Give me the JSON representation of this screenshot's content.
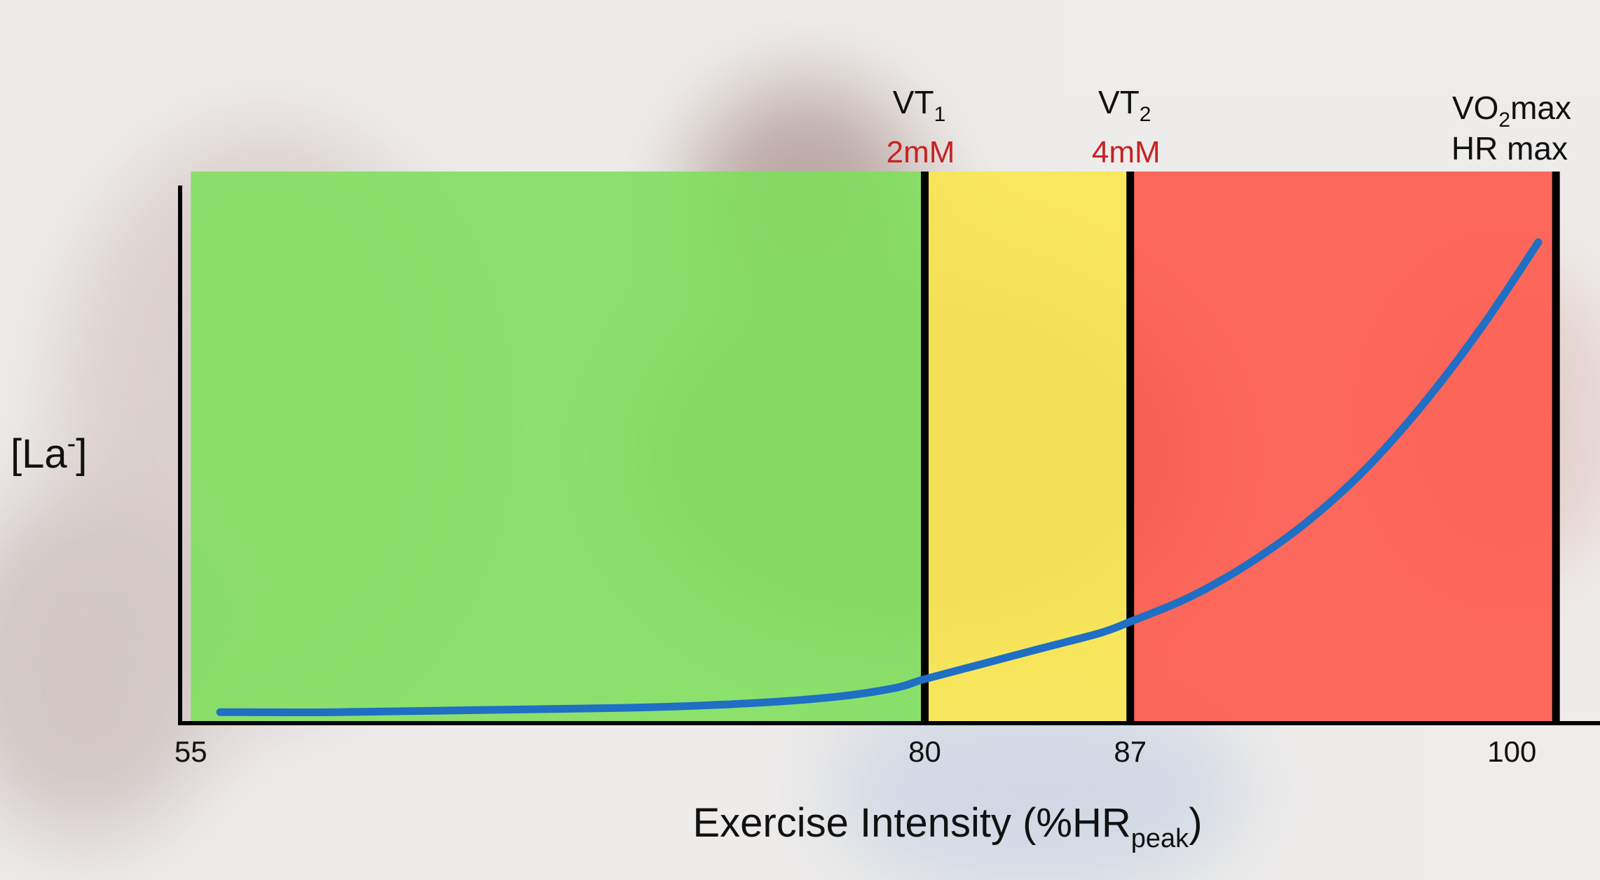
{
  "chart_data": {
    "type": "area",
    "xlabel": {
      "main": "Exercise Intensity (%HR",
      "sub": "peak",
      "close": ")"
    },
    "ylabel": {
      "main": "[La",
      "sup": "-",
      "close": "]"
    },
    "xlim": [
      48.5,
      103
    ],
    "x_ticks": [
      "55",
      "80",
      "87",
      "100"
    ],
    "zones": [
      {
        "from": 55,
        "to": 80,
        "color": "#7ddf5a"
      },
      {
        "from": 80,
        "to": 87,
        "color": "#fbe64a"
      },
      {
        "from": 87,
        "to": 101.5,
        "color": "#ff5548"
      }
    ],
    "thresholds": [
      {
        "x": 80,
        "name": "VT",
        "sub": "1",
        "lactate": "2mM"
      },
      {
        "x": 87,
        "name": "VT",
        "sub": "2",
        "lactate": "4mM"
      },
      {
        "x": 101.5,
        "line1_pre": "VO",
        "line1_sub": "2",
        "line1_post": "max",
        "line2": "HR max"
      }
    ],
    "series": [
      {
        "color": "#1f6fc5",
        "x": [
          56,
          60,
          65,
          70,
          74,
          77,
          79,
          80,
          82,
          84,
          86,
          87,
          89,
          91,
          93,
          95,
          97,
          99,
          100.9
        ],
        "y": [
          0.05,
          0.05,
          0.06,
          0.07,
          0.09,
          0.12,
          0.16,
          0.2,
          0.27,
          0.34,
          0.41,
          0.46,
          0.57,
          0.72,
          0.91,
          1.15,
          1.45,
          1.8,
          2.18
        ]
      }
    ],
    "ylim": [
      0,
      2.5
    ]
  }
}
